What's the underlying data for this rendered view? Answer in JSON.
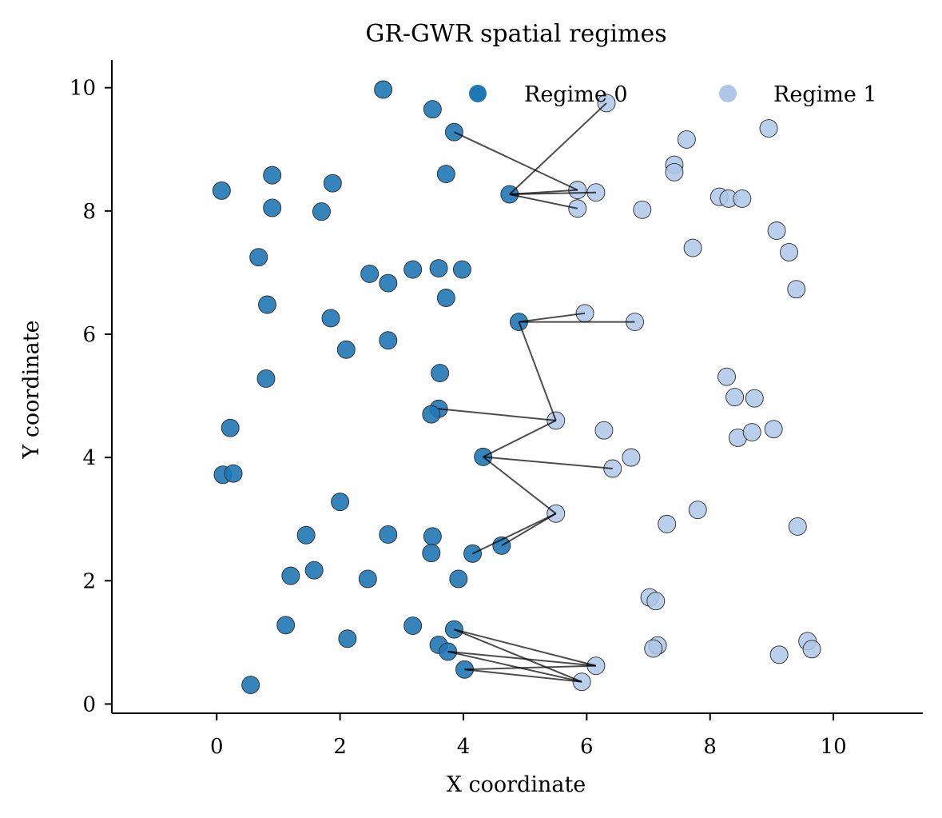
{
  "chart_data": {
    "type": "scatter",
    "title": "GR-GWR spatial regimes",
    "xlabel": "X coordinate",
    "ylabel": "Y coordinate",
    "xlim": [
      -1.7,
      11.45
    ],
    "ylim": [
      -0.15,
      10.45
    ],
    "xticks": [
      0,
      2,
      4,
      6,
      8,
      10
    ],
    "yticks": [
      0,
      2,
      4,
      6,
      8,
      10
    ],
    "grid": false,
    "legend_position": "top-right",
    "series": [
      {
        "name": "Regime 0",
        "color": "#1f77b4",
        "points": [
          [
            2.7,
            9.97
          ],
          [
            3.5,
            9.65
          ],
          [
            3.85,
            9.28
          ],
          [
            3.72,
            8.6
          ],
          [
            0.9,
            8.58
          ],
          [
            1.88,
            8.45
          ],
          [
            0.08,
            8.33
          ],
          [
            4.75,
            8.27
          ],
          [
            0.9,
            8.05
          ],
          [
            1.7,
            7.99
          ],
          [
            0.68,
            7.25
          ],
          [
            2.48,
            6.98
          ],
          [
            3.18,
            7.05
          ],
          [
            3.6,
            7.07
          ],
          [
            3.98,
            7.05
          ],
          [
            2.78,
            6.83
          ],
          [
            3.72,
            6.59
          ],
          [
            0.82,
            6.48
          ],
          [
            1.85,
            6.26
          ],
          [
            4.9,
            6.2
          ],
          [
            2.78,
            5.9
          ],
          [
            2.1,
            5.75
          ],
          [
            3.62,
            5.37
          ],
          [
            0.8,
            5.28
          ],
          [
            3.6,
            4.79
          ],
          [
            3.48,
            4.7
          ],
          [
            0.22,
            4.48
          ],
          [
            4.32,
            4.01
          ],
          [
            0.1,
            3.72
          ],
          [
            0.27,
            3.74
          ],
          [
            2.0,
            3.28
          ],
          [
            1.45,
            2.74
          ],
          [
            2.78,
            2.75
          ],
          [
            3.5,
            2.72
          ],
          [
            4.62,
            2.57
          ],
          [
            4.15,
            2.44
          ],
          [
            3.48,
            2.45
          ],
          [
            1.58,
            2.17
          ],
          [
            1.2,
            2.08
          ],
          [
            2.45,
            2.03
          ],
          [
            3.92,
            2.03
          ],
          [
            1.12,
            1.28
          ],
          [
            3.18,
            1.27
          ],
          [
            3.85,
            1.21
          ],
          [
            2.12,
            1.06
          ],
          [
            3.6,
            0.96
          ],
          [
            3.75,
            0.85
          ],
          [
            4.02,
            0.56
          ],
          [
            0.55,
            0.31
          ]
        ]
      },
      {
        "name": "Regime 1",
        "color": "#aec7e8",
        "points": [
          [
            6.32,
            9.75
          ],
          [
            8.95,
            9.34
          ],
          [
            7.62,
            9.16
          ],
          [
            7.42,
            8.75
          ],
          [
            7.42,
            8.63
          ],
          [
            5.85,
            8.34
          ],
          [
            6.15,
            8.3
          ],
          [
            8.15,
            8.23
          ],
          [
            8.3,
            8.2
          ],
          [
            8.52,
            8.2
          ],
          [
            5.85,
            8.04
          ],
          [
            6.9,
            8.02
          ],
          [
            9.08,
            7.68
          ],
          [
            7.72,
            7.4
          ],
          [
            9.28,
            7.33
          ],
          [
            9.4,
            6.73
          ],
          [
            5.97,
            6.34
          ],
          [
            6.78,
            6.2
          ],
          [
            8.27,
            5.31
          ],
          [
            8.4,
            4.98
          ],
          [
            8.72,
            4.96
          ],
          [
            5.5,
            4.6
          ],
          [
            6.28,
            4.44
          ],
          [
            8.45,
            4.32
          ],
          [
            8.68,
            4.41
          ],
          [
            9.03,
            4.46
          ],
          [
            6.72,
            4.0
          ],
          [
            6.42,
            3.82
          ],
          [
            5.5,
            3.09
          ],
          [
            7.8,
            3.15
          ],
          [
            7.3,
            2.92
          ],
          [
            9.42,
            2.88
          ],
          [
            7.02,
            1.73
          ],
          [
            7.12,
            1.67
          ],
          [
            7.15,
            0.95
          ],
          [
            7.08,
            0.9
          ],
          [
            9.58,
            1.02
          ],
          [
            9.65,
            0.89
          ],
          [
            9.12,
            0.8
          ],
          [
            6.15,
            0.62
          ],
          [
            5.92,
            0.36
          ]
        ]
      }
    ],
    "connections": [
      [
        [
          3.85,
          9.28
        ],
        [
          5.85,
          8.34
        ]
      ],
      [
        [
          4.75,
          8.27
        ],
        [
          6.32,
          9.75
        ]
      ],
      [
        [
          4.75,
          8.27
        ],
        [
          5.85,
          8.34
        ]
      ],
      [
        [
          4.75,
          8.27
        ],
        [
          6.15,
          8.3
        ]
      ],
      [
        [
          4.75,
          8.27
        ],
        [
          5.85,
          8.04
        ]
      ],
      [
        [
          4.9,
          6.2
        ],
        [
          5.97,
          6.34
        ]
      ],
      [
        [
          4.9,
          6.2
        ],
        [
          6.78,
          6.2
        ]
      ],
      [
        [
          4.9,
          6.2
        ],
        [
          5.5,
          4.6
        ]
      ],
      [
        [
          3.6,
          4.79
        ],
        [
          5.5,
          4.6
        ]
      ],
      [
        [
          4.32,
          4.01
        ],
        [
          5.5,
          4.6
        ]
      ],
      [
        [
          4.32,
          4.01
        ],
        [
          6.42,
          3.82
        ]
      ],
      [
        [
          4.32,
          4.01
        ],
        [
          5.5,
          3.09
        ]
      ],
      [
        [
          4.62,
          2.57
        ],
        [
          5.5,
          3.09
        ]
      ],
      [
        [
          4.15,
          2.44
        ],
        [
          5.5,
          3.09
        ]
      ],
      [
        [
          3.85,
          1.21
        ],
        [
          6.15,
          0.62
        ]
      ],
      [
        [
          3.85,
          1.21
        ],
        [
          5.92,
          0.36
        ]
      ],
      [
        [
          3.75,
          0.85
        ],
        [
          6.15,
          0.62
        ]
      ],
      [
        [
          3.75,
          0.85
        ],
        [
          5.92,
          0.36
        ]
      ],
      [
        [
          4.02,
          0.56
        ],
        [
          6.15,
          0.62
        ]
      ],
      [
        [
          4.02,
          0.56
        ],
        [
          5.92,
          0.36
        ]
      ]
    ]
  }
}
